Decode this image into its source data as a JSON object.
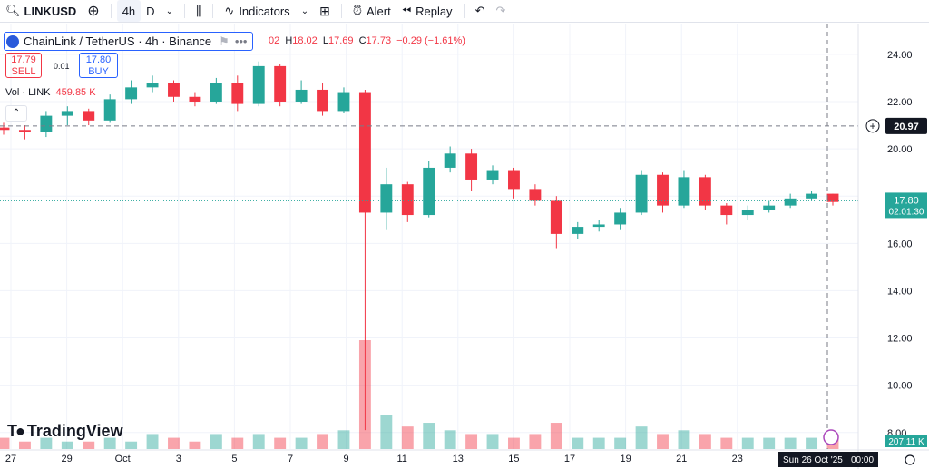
{
  "toolbar": {
    "symbol": "LINKUSD",
    "interval_active": "4h",
    "interval_other": "D",
    "indicators_label": "Indicators",
    "alert_label": "Alert",
    "replay_label": "Replay"
  },
  "legend": {
    "title": "ChainLink / TetherUS · 4h · Binance",
    "ohlc_prefix": "02",
    "high_label": "H",
    "high": "18.02",
    "low_label": "L",
    "low": "17.69",
    "close_label": "C",
    "close": "17.73",
    "change": "−0.29 (−1.61%)"
  },
  "trade": {
    "sell_price": "17.79",
    "sell_label": "SELL",
    "spread": "0.01",
    "buy_price": "17.80",
    "buy_label": "BUY"
  },
  "volume": {
    "label": "Vol · LINK",
    "value": "459.85 K",
    "scale_label": "207.11 K"
  },
  "logo_text": "TradingView",
  "crosshair": {
    "price_label": "20.97",
    "time_label": "Sun 26 Oct '25",
    "time_suffix": "00:00"
  },
  "last_price": {
    "price": "17.80",
    "countdown": "02:01:30"
  },
  "colors": {
    "up": "#26a69a",
    "down": "#f23645",
    "accent": "#2962ff"
  },
  "chart_data": {
    "type": "candlestick",
    "x_tick_labels": [
      "27",
      "29",
      "Oct",
      "3",
      "5",
      "7",
      "9",
      "11",
      "13",
      "15",
      "17",
      "19",
      "21",
      "23"
    ],
    "y_tick_labels": [
      "24.00",
      "22.00",
      "20.00",
      "18.00",
      "16.00",
      "14.00",
      "12.00",
      "10.00",
      "8.00"
    ],
    "ylim": [
      7.3,
      25.3
    ],
    "series": [
      {
        "values": [
          {
            "x": "Sep 26",
            "o": 20.9,
            "c": 20.8,
            "h": 21.1,
            "l": 20.6
          },
          {
            "x": "Sep 27",
            "o": 20.8,
            "c": 20.7,
            "h": 21.0,
            "l": 20.4
          },
          {
            "x": "Sep 28",
            "o": 20.7,
            "c": 21.4,
            "h": 21.6,
            "l": 20.5
          },
          {
            "x": "Sep 29",
            "o": 21.4,
            "c": 21.6,
            "h": 21.8,
            "l": 21.0
          },
          {
            "x": "Sep 30",
            "o": 21.6,
            "c": 21.2,
            "h": 21.7,
            "l": 21.0
          },
          {
            "x": "Oct 1",
            "o": 21.2,
            "c": 22.1,
            "h": 22.3,
            "l": 21.1
          },
          {
            "x": "Oct 2",
            "o": 22.1,
            "c": 22.6,
            "h": 22.9,
            "l": 21.9
          },
          {
            "x": "Oct 3",
            "o": 22.6,
            "c": 22.8,
            "h": 23.1,
            "l": 22.4
          },
          {
            "x": "Oct 4",
            "o": 22.8,
            "c": 22.2,
            "h": 22.9,
            "l": 22.0
          },
          {
            "x": "Oct 5",
            "o": 22.2,
            "c": 22.0,
            "h": 22.4,
            "l": 21.8
          },
          {
            "x": "Oct 6",
            "o": 22.0,
            "c": 22.8,
            "h": 23.0,
            "l": 21.9
          },
          {
            "x": "Oct 7",
            "o": 22.8,
            "c": 21.9,
            "h": 23.1,
            "l": 21.6
          },
          {
            "x": "Oct 8",
            "o": 21.9,
            "c": 23.5,
            "h": 23.7,
            "l": 21.8
          },
          {
            "x": "Oct 9",
            "o": 23.5,
            "c": 22.0,
            "h": 23.6,
            "l": 21.8
          },
          {
            "x": "Oct 10",
            "o": 22.0,
            "c": 22.5,
            "h": 22.9,
            "l": 21.9
          },
          {
            "x": "Oct 11",
            "o": 22.5,
            "c": 21.6,
            "h": 22.8,
            "l": 21.4
          },
          {
            "x": "Oct 11b",
            "o": 21.6,
            "c": 22.4,
            "h": 22.6,
            "l": 21.5
          },
          {
            "x": "Oct 11c",
            "o": 22.4,
            "c": 17.3,
            "h": 22.5,
            "l": 8.1
          },
          {
            "x": "Oct 12",
            "o": 17.3,
            "c": 18.5,
            "h": 19.2,
            "l": 16.6
          },
          {
            "x": "Oct 13",
            "o": 18.5,
            "c": 17.2,
            "h": 18.6,
            "l": 16.9
          },
          {
            "x": "Oct 14",
            "o": 17.2,
            "c": 19.2,
            "h": 19.5,
            "l": 17.1
          },
          {
            "x": "Oct 15",
            "o": 19.2,
            "c": 19.8,
            "h": 20.1,
            "l": 19.0
          },
          {
            "x": "Oct 16",
            "o": 19.8,
            "c": 18.7,
            "h": 20.0,
            "l": 18.2
          },
          {
            "x": "Oct 17",
            "o": 18.7,
            "c": 19.1,
            "h": 19.3,
            "l": 18.5
          },
          {
            "x": "Oct 18",
            "o": 19.1,
            "c": 18.3,
            "h": 19.2,
            "l": 17.9
          },
          {
            "x": "Oct 19",
            "o": 18.3,
            "c": 17.8,
            "h": 18.5,
            "l": 17.6
          },
          {
            "x": "Oct 20",
            "o": 17.8,
            "c": 16.4,
            "h": 18.0,
            "l": 15.8
          },
          {
            "x": "Oct 21",
            "o": 16.4,
            "c": 16.7,
            "h": 16.9,
            "l": 16.2
          },
          {
            "x": "Oct 22",
            "o": 16.7,
            "c": 16.8,
            "h": 17.0,
            "l": 16.5
          },
          {
            "x": "Oct 23",
            "o": 16.8,
            "c": 17.3,
            "h": 17.5,
            "l": 16.6
          },
          {
            "x": "Oct 24",
            "o": 17.3,
            "c": 18.9,
            "h": 19.1,
            "l": 17.2
          },
          {
            "x": "Oct 25",
            "o": 18.9,
            "c": 17.6,
            "h": 19.0,
            "l": 17.3
          },
          {
            "x": "Oct 26",
            "o": 17.6,
            "c": 18.8,
            "h": 19.1,
            "l": 17.5
          },
          {
            "x": "Oct 27",
            "o": 18.8,
            "c": 17.6,
            "h": 18.9,
            "l": 17.4
          },
          {
            "x": "Oct 28",
            "o": 17.6,
            "c": 17.2,
            "h": 17.7,
            "l": 16.8
          },
          {
            "x": "Oct 29",
            "o": 17.2,
            "c": 17.4,
            "h": 17.6,
            "l": 17.0
          },
          {
            "x": "Oct 30",
            "o": 17.4,
            "c": 17.6,
            "h": 17.8,
            "l": 17.3
          },
          {
            "x": "Oct 31",
            "o": 17.6,
            "c": 17.9,
            "h": 18.1,
            "l": 17.5
          },
          {
            "x": "Nov 1",
            "o": 17.9,
            "c": 18.1,
            "h": 18.2,
            "l": 17.8
          },
          {
            "x": "Nov 2",
            "o": 18.1,
            "c": 17.75,
            "h": 18.1,
            "l": 17.6
          }
        ]
      }
    ],
    "volume": [
      3,
      2,
      3,
      2,
      2,
      3,
      2,
      4,
      3,
      2,
      4,
      3,
      4,
      3,
      3,
      4,
      5,
      29,
      9,
      6,
      7,
      5,
      4,
      4,
      3,
      4,
      7,
      3,
      3,
      3,
      6,
      4,
      5,
      4,
      3,
      3,
      3,
      3,
      3,
      4
    ],
    "crosshair_price": 20.97,
    "last_price": 17.8
  }
}
